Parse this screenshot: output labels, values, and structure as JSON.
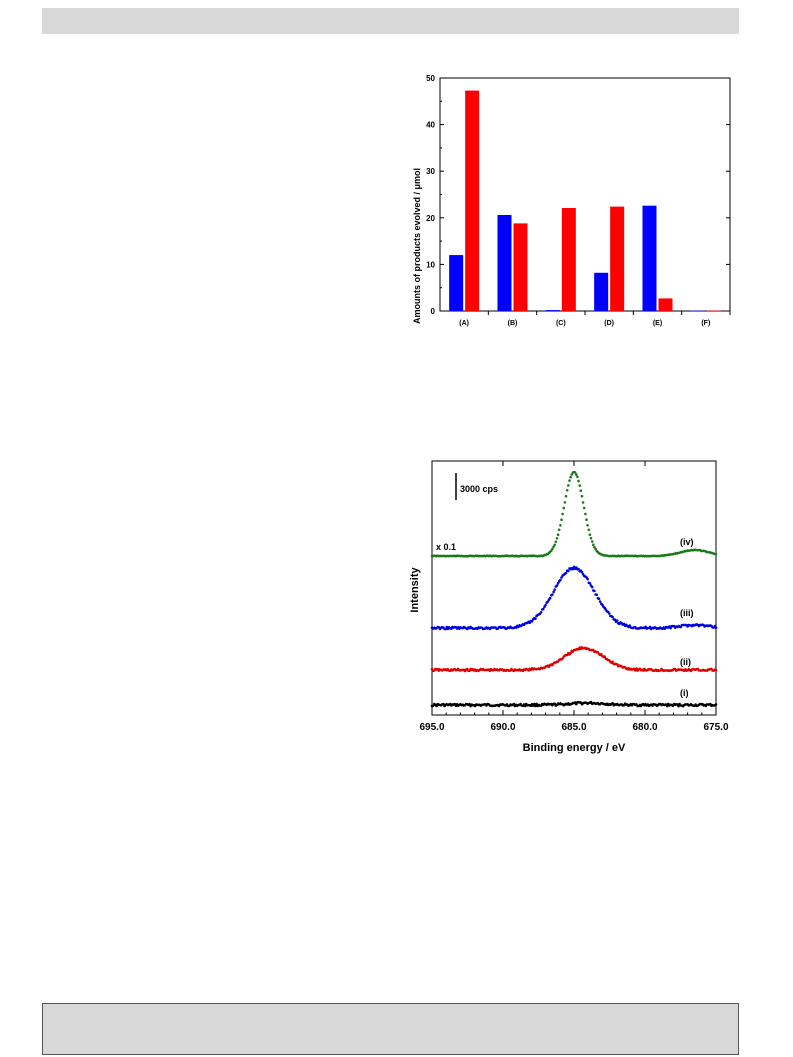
{
  "chart_data": [
    {
      "type": "bar",
      "ylabel": "Amounts of products evolved / μmol",
      "ylim": [
        0,
        50
      ],
      "yticks": [
        0,
        10,
        20,
        30,
        40,
        50
      ],
      "categories": [
        "(A)",
        "(B)",
        "(C)",
        "(D)",
        "(E)",
        "(F)"
      ],
      "series": [
        {
          "color": "#0000ff",
          "values": [
            12.0,
            20.6,
            0.2,
            8.2,
            22.6,
            0.1
          ]
        },
        {
          "color": "#ff0000",
          "values": [
            47.3,
            18.8,
            22.1,
            22.4,
            2.7,
            0.1
          ]
        }
      ],
      "grid": false
    },
    {
      "type": "scatter",
      "xlabel": "Binding energy / eV",
      "ylabel": "Intensity",
      "xlim": [
        695.0,
        675.0
      ],
      "xtick_labels": [
        "695.0",
        "690.0",
        "685.0",
        "680.0",
        "675.0"
      ],
      "scale_bar_label": "3000 cps",
      "annotation": "x 0.1",
      "series": [
        {
          "name": "(i)",
          "color": "#000000",
          "peak_eV": 684.0,
          "fwhm_eV": 3.0
        },
        {
          "name": "(ii)",
          "color": "#e00000",
          "peak_eV": 684.3,
          "fwhm_eV": 3.2
        },
        {
          "name": "(iii)",
          "color": "#0000e0",
          "peak_eV": 685.0,
          "fwhm_eV": 3.4
        },
        {
          "name": "(iv)",
          "color": "#1a7a1a",
          "peak_eV": 685.0,
          "fwhm_eV": 1.6
        }
      ],
      "grid": false
    }
  ]
}
